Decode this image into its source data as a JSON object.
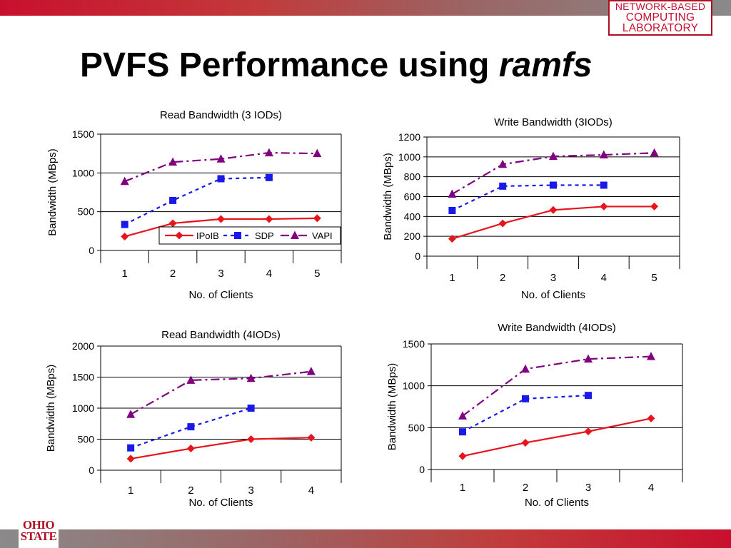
{
  "slide": {
    "title_main": "PVFS Performance using ",
    "title_italic": "ramfs",
    "logo_lines": [
      "NETWORK-BASED",
      "COMPUTING",
      "LABORATORY"
    ],
    "osu_lines": [
      "OHIO",
      "STATE"
    ]
  },
  "colors": {
    "IPoIB": "#e8141c",
    "SDP": "#1a1ae8",
    "VAPI": "#800080",
    "grid": "#000000"
  },
  "chart_data": [
    {
      "type": "line",
      "title": "Read Bandwidth (3 IODs)",
      "xlabel": "No. of Clients",
      "ylabel": "Bandwidth (MBps)",
      "categories": [
        "1",
        "2",
        "3",
        "4",
        "5"
      ],
      "ylim": [
        0,
        1500
      ],
      "yticks": [
        "0",
        "500",
        "1000",
        "1500"
      ],
      "grid": true,
      "legend": "inside-bottom-right",
      "series": [
        {
          "name": "IPoIB",
          "values": [
            180,
            350,
            405,
            405,
            415
          ]
        },
        {
          "name": "SDP",
          "values": [
            335,
            645,
            925,
            940,
            null
          ]
        },
        {
          "name": "VAPI",
          "values": [
            890,
            1140,
            1180,
            1260,
            1250
          ]
        }
      ]
    },
    {
      "type": "line",
      "title": "Write Bandwidth (3IODs)",
      "xlabel": "No. of Clients",
      "ylabel": "Bandwidth (MBps)",
      "categories": [
        "1",
        "2",
        "3",
        "4",
        "5"
      ],
      "ylim": [
        0,
        1200
      ],
      "yticks": [
        "0",
        "200",
        "400",
        "600",
        "800",
        "1000",
        "1200"
      ],
      "grid": true,
      "series": [
        {
          "name": "IPoIB",
          "values": [
            175,
            330,
            465,
            500,
            500
          ]
        },
        {
          "name": "SDP",
          "values": [
            460,
            705,
            715,
            715,
            null
          ]
        },
        {
          "name": "VAPI",
          "values": [
            625,
            925,
            1005,
            1020,
            1040
          ]
        }
      ]
    },
    {
      "type": "line",
      "title": "Read Bandwidth (4IODs)",
      "xlabel": "No. of Clients",
      "ylabel": "Bandwidth (MBps)",
      "categories": [
        "1",
        "2",
        "3",
        "4"
      ],
      "ylim": [
        0,
        2000
      ],
      "yticks": [
        "0",
        "500",
        "1000",
        "1500",
        "2000"
      ],
      "grid": true,
      "series": [
        {
          "name": "IPoIB",
          "values": [
            185,
            350,
            500,
            525
          ]
        },
        {
          "name": "SDP",
          "values": [
            360,
            700,
            1000,
            null
          ]
        },
        {
          "name": "VAPI",
          "values": [
            900,
            1450,
            1480,
            1590
          ]
        }
      ]
    },
    {
      "type": "line",
      "title": "Write Bandwidth (4IODs)",
      "xlabel": "No. of Clients",
      "ylabel": "Bandwidth (MBps)",
      "categories": [
        "1",
        "2",
        "3",
        "4"
      ],
      "ylim": [
        0,
        1500
      ],
      "yticks": [
        "0",
        "500",
        "1000",
        "1500"
      ],
      "grid": true,
      "series": [
        {
          "name": "IPoIB",
          "values": [
            160,
            320,
            455,
            610
          ]
        },
        {
          "name": "SDP",
          "values": [
            450,
            845,
            885,
            null
          ]
        },
        {
          "name": "VAPI",
          "values": [
            640,
            1200,
            1320,
            1350
          ]
        }
      ]
    }
  ]
}
